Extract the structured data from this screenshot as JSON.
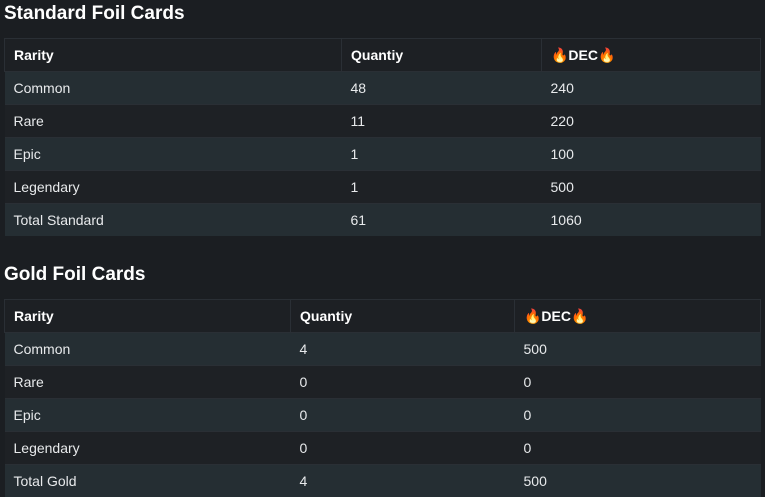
{
  "sections": [
    {
      "title": "Standard Foil Cards",
      "table": {
        "headers": [
          "Rarity",
          "Quantiy",
          "🔥DEC🔥"
        ],
        "rows": [
          [
            "Common",
            48,
            240
          ],
          [
            "Rare",
            11,
            220
          ],
          [
            "Epic",
            1,
            100
          ],
          [
            "Legendary",
            1,
            500
          ],
          [
            "Total Standard",
            61,
            1060
          ]
        ]
      }
    },
    {
      "title": "Gold Foil Cards",
      "table": {
        "headers": [
          "Rarity",
          "Quantiy",
          "🔥DEC🔥"
        ],
        "rows": [
          [
            "Common",
            4,
            500
          ],
          [
            "Rare",
            0,
            0
          ],
          [
            "Epic",
            0,
            0
          ],
          [
            "Legendary",
            0,
            0
          ],
          [
            "Total Gold",
            4,
            500
          ]
        ]
      }
    }
  ]
}
